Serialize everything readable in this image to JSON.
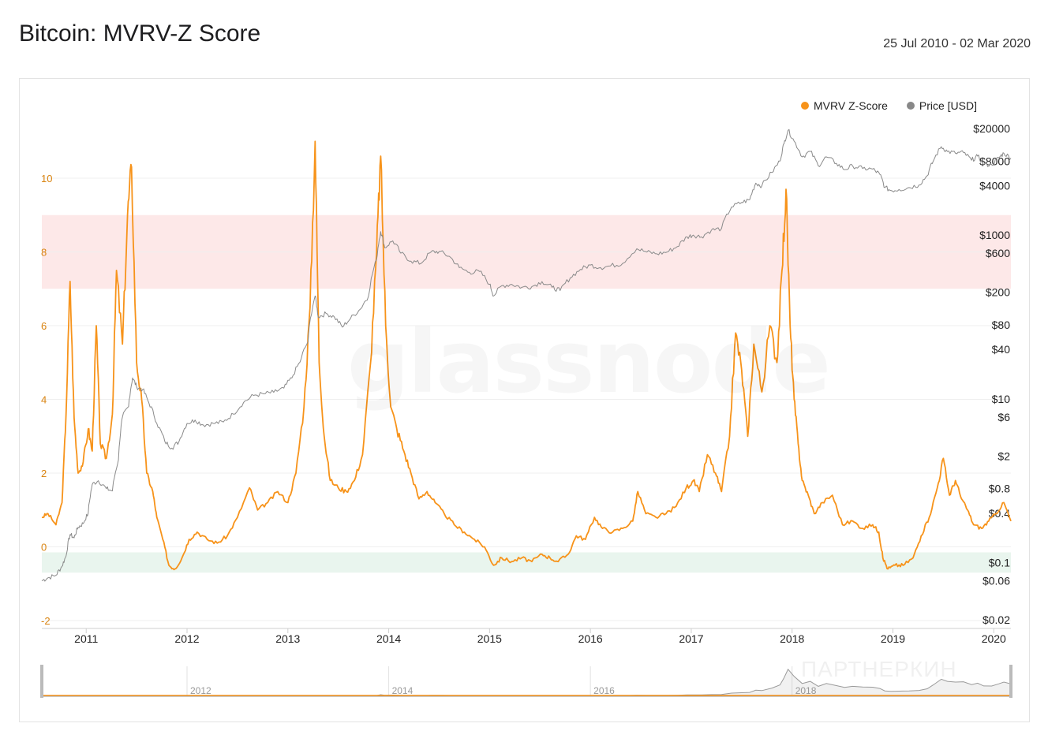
{
  "header": {
    "title": "Bitcoin: MVRV-Z Score",
    "date_range": "25 Jul 2010 - 02 Mar 2020"
  },
  "watermark": "glassnode",
  "watermark2": "ПАРТНЕРКИН",
  "legend": [
    {
      "label": "MVRV Z-Score",
      "color": "#f7931a"
    },
    {
      "label": "Price [USD]",
      "color": "#888888"
    }
  ],
  "chart_data": {
    "type": "line",
    "title": "Bitcoin: MVRV-Z Score",
    "x_range": [
      2010.56,
      2020.17
    ],
    "x_ticks": [
      "2011",
      "2012",
      "2013",
      "2014",
      "2015",
      "2016",
      "2017",
      "2018",
      "2019",
      "2020"
    ],
    "y_left": {
      "range": [
        -2,
        12
      ],
      "ticks": [
        "10",
        "8",
        "6",
        "4",
        "2",
        "0",
        "-2"
      ]
    },
    "y_right": {
      "scale": "log",
      "range": [
        0.02,
        40000
      ],
      "ticks": [
        "$20000",
        "$8000",
        "$4000",
        "$1000",
        "$600",
        "$200",
        "$80",
        "$40",
        "$10",
        "$6",
        "$2",
        "$0.8",
        "$0.4",
        "$0.1",
        "$0.06",
        "$0.02"
      ]
    },
    "bands": [
      {
        "axis": "left",
        "from": 7,
        "to": 9,
        "color": "#fde8e8"
      },
      {
        "axis": "left",
        "from": -0.7,
        "to": -0.15,
        "color": "#e9f5ee"
      }
    ],
    "series": [
      {
        "name": "MVRV Z-Score",
        "axis": "left",
        "color": "#f7931a",
        "points": [
          [
            2010.56,
            0.8
          ],
          [
            2010.62,
            0.9
          ],
          [
            2010.7,
            0.6
          ],
          [
            2010.76,
            1.2
          ],
          [
            2010.8,
            3.6
          ],
          [
            2010.84,
            7.2
          ],
          [
            2010.88,
            3.5
          ],
          [
            2010.92,
            2.0
          ],
          [
            2010.97,
            2.3
          ],
          [
            2011.02,
            3.2
          ],
          [
            2011.06,
            2.6
          ],
          [
            2011.1,
            6.0
          ],
          [
            2011.14,
            2.8
          ],
          [
            2011.2,
            2.4
          ],
          [
            2011.26,
            3.6
          ],
          [
            2011.3,
            7.5
          ],
          [
            2011.36,
            5.5
          ],
          [
            2011.41,
            9.0
          ],
          [
            2011.45,
            10.3
          ],
          [
            2011.5,
            5.0
          ],
          [
            2011.55,
            4.0
          ],
          [
            2011.6,
            2.0
          ],
          [
            2011.66,
            1.5
          ],
          [
            2011.7,
            0.8
          ],
          [
            2011.76,
            0.2
          ],
          [
            2011.82,
            -0.5
          ],
          [
            2011.88,
            -0.6
          ],
          [
            2011.95,
            -0.3
          ],
          [
            2012.02,
            0.2
          ],
          [
            2012.1,
            0.4
          ],
          [
            2012.2,
            0.2
          ],
          [
            2012.3,
            0.1
          ],
          [
            2012.4,
            0.3
          ],
          [
            2012.5,
            0.8
          ],
          [
            2012.62,
            1.6
          ],
          [
            2012.7,
            1.0
          ],
          [
            2012.8,
            1.2
          ],
          [
            2012.9,
            1.5
          ],
          [
            2013.0,
            1.2
          ],
          [
            2013.08,
            2.0
          ],
          [
            2013.16,
            3.8
          ],
          [
            2013.22,
            6.5
          ],
          [
            2013.27,
            11.0
          ],
          [
            2013.31,
            5.0
          ],
          [
            2013.36,
            3.0
          ],
          [
            2013.42,
            1.8
          ],
          [
            2013.5,
            1.6
          ],
          [
            2013.58,
            1.5
          ],
          [
            2013.66,
            1.8
          ],
          [
            2013.74,
            2.5
          ],
          [
            2013.82,
            5.0
          ],
          [
            2013.88,
            8.0
          ],
          [
            2013.92,
            10.6
          ],
          [
            2013.97,
            6.0
          ],
          [
            2014.02,
            3.8
          ],
          [
            2014.08,
            3.2
          ],
          [
            2014.15,
            2.6
          ],
          [
            2014.22,
            2.0
          ],
          [
            2014.3,
            1.3
          ],
          [
            2014.38,
            1.5
          ],
          [
            2014.46,
            1.2
          ],
          [
            2014.55,
            0.9
          ],
          [
            2014.65,
            0.6
          ],
          [
            2014.75,
            0.4
          ],
          [
            2014.85,
            0.2
          ],
          [
            2014.95,
            0.0
          ],
          [
            2015.04,
            -0.5
          ],
          [
            2015.12,
            -0.3
          ],
          [
            2015.22,
            -0.4
          ],
          [
            2015.32,
            -0.3
          ],
          [
            2015.42,
            -0.4
          ],
          [
            2015.52,
            -0.2
          ],
          [
            2015.6,
            -0.3
          ],
          [
            2015.68,
            -0.4
          ],
          [
            2015.78,
            -0.2
          ],
          [
            2015.86,
            0.3
          ],
          [
            2015.95,
            0.2
          ],
          [
            2016.04,
            0.8
          ],
          [
            2016.12,
            0.5
          ],
          [
            2016.22,
            0.4
          ],
          [
            2016.32,
            0.5
          ],
          [
            2016.42,
            0.7
          ],
          [
            2016.47,
            1.5
          ],
          [
            2016.55,
            0.9
          ],
          [
            2016.65,
            0.8
          ],
          [
            2016.75,
            0.9
          ],
          [
            2016.85,
            1.1
          ],
          [
            2016.95,
            1.6
          ],
          [
            2017.02,
            1.8
          ],
          [
            2017.08,
            1.5
          ],
          [
            2017.16,
            2.5
          ],
          [
            2017.24,
            2.0
          ],
          [
            2017.3,
            1.5
          ],
          [
            2017.38,
            3.0
          ],
          [
            2017.44,
            5.8
          ],
          [
            2017.5,
            4.8
          ],
          [
            2017.56,
            3.0
          ],
          [
            2017.62,
            5.5
          ],
          [
            2017.7,
            4.2
          ],
          [
            2017.78,
            6.0
          ],
          [
            2017.85,
            5.0
          ],
          [
            2017.9,
            7.5
          ],
          [
            2017.94,
            9.7
          ],
          [
            2017.98,
            6.0
          ],
          [
            2018.02,
            4.0
          ],
          [
            2018.06,
            2.8
          ],
          [
            2018.1,
            1.8
          ],
          [
            2018.16,
            1.4
          ],
          [
            2018.22,
            0.9
          ],
          [
            2018.3,
            1.2
          ],
          [
            2018.4,
            1.4
          ],
          [
            2018.5,
            0.6
          ],
          [
            2018.6,
            0.7
          ],
          [
            2018.7,
            0.5
          ],
          [
            2018.8,
            0.6
          ],
          [
            2018.86,
            0.4
          ],
          [
            2018.9,
            -0.3
          ],
          [
            2018.95,
            -0.6
          ],
          [
            2019.02,
            -0.5
          ],
          [
            2019.1,
            -0.5
          ],
          [
            2019.2,
            -0.3
          ],
          [
            2019.28,
            0.3
          ],
          [
            2019.36,
            0.8
          ],
          [
            2019.44,
            1.6
          ],
          [
            2019.5,
            2.4
          ],
          [
            2019.56,
            1.4
          ],
          [
            2019.62,
            1.8
          ],
          [
            2019.68,
            1.3
          ],
          [
            2019.74,
            1.0
          ],
          [
            2019.8,
            0.6
          ],
          [
            2019.88,
            0.5
          ],
          [
            2019.95,
            0.7
          ],
          [
            2020.02,
            0.9
          ],
          [
            2020.1,
            1.2
          ],
          [
            2020.17,
            0.7
          ]
        ]
      },
      {
        "name": "Price [USD]",
        "axis": "right",
        "color": "#8a8a8a",
        "points": [
          [
            2010.56,
            0.06
          ],
          [
            2010.62,
            0.065
          ],
          [
            2010.7,
            0.07
          ],
          [
            2010.76,
            0.09
          ],
          [
            2010.8,
            0.12
          ],
          [
            2010.84,
            0.22
          ],
          [
            2010.88,
            0.2
          ],
          [
            2010.92,
            0.27
          ],
          [
            2010.97,
            0.3
          ],
          [
            2011.02,
            0.4
          ],
          [
            2011.06,
            0.9
          ],
          [
            2011.12,
            1.0
          ],
          [
            2011.2,
            0.8
          ],
          [
            2011.26,
            0.75
          ],
          [
            2011.32,
            1.8
          ],
          [
            2011.36,
            6.0
          ],
          [
            2011.42,
            8.0
          ],
          [
            2011.46,
            18.0
          ],
          [
            2011.5,
            14.0
          ],
          [
            2011.56,
            13.0
          ],
          [
            2011.62,
            9.0
          ],
          [
            2011.7,
            5.0
          ],
          [
            2011.78,
            3.0
          ],
          [
            2011.85,
            2.5
          ],
          [
            2011.92,
            3.0
          ],
          [
            2012.0,
            5.0
          ],
          [
            2012.08,
            5.5
          ],
          [
            2012.16,
            4.8
          ],
          [
            2012.26,
            5.0
          ],
          [
            2012.36,
            5.2
          ],
          [
            2012.46,
            6.5
          ],
          [
            2012.56,
            9.0
          ],
          [
            2012.66,
            11.0
          ],
          [
            2012.76,
            11.5
          ],
          [
            2012.86,
            12.0
          ],
          [
            2012.96,
            13.5
          ],
          [
            2013.04,
            18.0
          ],
          [
            2013.12,
            28.0
          ],
          [
            2013.2,
            50.0
          ],
          [
            2013.27,
            180.0
          ],
          [
            2013.3,
            100.0
          ],
          [
            2013.38,
            110.0
          ],
          [
            2013.46,
            100.0
          ],
          [
            2013.54,
            75.0
          ],
          [
            2013.62,
            95.0
          ],
          [
            2013.72,
            125.0
          ],
          [
            2013.8,
            180.0
          ],
          [
            2013.88,
            500.0
          ],
          [
            2013.92,
            1100.0
          ],
          [
            2013.96,
            700.0
          ],
          [
            2014.04,
            850.0
          ],
          [
            2014.12,
            600.0
          ],
          [
            2014.22,
            480.0
          ],
          [
            2014.32,
            450.0
          ],
          [
            2014.42,
            620.0
          ],
          [
            2014.5,
            630.0
          ],
          [
            2014.6,
            550.0
          ],
          [
            2014.7,
            400.0
          ],
          [
            2014.8,
            350.0
          ],
          [
            2014.9,
            360.0
          ],
          [
            2015.0,
            250.0
          ],
          [
            2015.04,
            180.0
          ],
          [
            2015.12,
            240.0
          ],
          [
            2015.22,
            250.0
          ],
          [
            2015.32,
            230.0
          ],
          [
            2015.42,
            235.0
          ],
          [
            2015.52,
            270.0
          ],
          [
            2015.62,
            230.0
          ],
          [
            2015.7,
            210.0
          ],
          [
            2015.8,
            300.0
          ],
          [
            2015.9,
            380.0
          ],
          [
            2016.0,
            430.0
          ],
          [
            2016.1,
            400.0
          ],
          [
            2016.2,
            420.0
          ],
          [
            2016.32,
            450.0
          ],
          [
            2016.46,
            680.0
          ],
          [
            2016.56,
            620.0
          ],
          [
            2016.66,
            590.0
          ],
          [
            2016.76,
            620.0
          ],
          [
            2016.86,
            720.0
          ],
          [
            2016.96,
            950.0
          ],
          [
            2017.02,
            1000.0
          ],
          [
            2017.1,
            950.0
          ],
          [
            2017.2,
            1150.0
          ],
          [
            2017.3,
            1200.0
          ],
          [
            2017.4,
            2200.0
          ],
          [
            2017.5,
            2500.0
          ],
          [
            2017.58,
            2700.0
          ],
          [
            2017.64,
            4300.0
          ],
          [
            2017.7,
            4000.0
          ],
          [
            2017.8,
            5800.0
          ],
          [
            2017.88,
            8000.0
          ],
          [
            2017.92,
            13000.0
          ],
          [
            2017.96,
            19000.0
          ],
          [
            2018.02,
            14000.0
          ],
          [
            2018.1,
            9000.0
          ],
          [
            2018.18,
            10500.0
          ],
          [
            2018.26,
            7000.0
          ],
          [
            2018.34,
            9000.0
          ],
          [
            2018.44,
            7500.0
          ],
          [
            2018.52,
            6300.0
          ],
          [
            2018.6,
            7000.0
          ],
          [
            2018.7,
            6500.0
          ],
          [
            2018.8,
            6400.0
          ],
          [
            2018.87,
            5500.0
          ],
          [
            2018.92,
            3800.0
          ],
          [
            2018.98,
            3500.0
          ],
          [
            2019.06,
            3600.0
          ],
          [
            2019.16,
            3800.0
          ],
          [
            2019.26,
            4100.0
          ],
          [
            2019.34,
            5300.0
          ],
          [
            2019.4,
            8000.0
          ],
          [
            2019.48,
            12000.0
          ],
          [
            2019.54,
            10500.0
          ],
          [
            2019.62,
            10000.0
          ],
          [
            2019.7,
            10200.0
          ],
          [
            2019.78,
            8200.0
          ],
          [
            2019.84,
            9200.0
          ],
          [
            2019.9,
            7300.0
          ],
          [
            2019.98,
            7200.0
          ],
          [
            2020.05,
            8800.0
          ],
          [
            2020.1,
            10000.0
          ],
          [
            2020.17,
            8700.0
          ]
        ]
      }
    ],
    "navigator_ticks": [
      "2012",
      "2014",
      "2016",
      "2018"
    ]
  }
}
